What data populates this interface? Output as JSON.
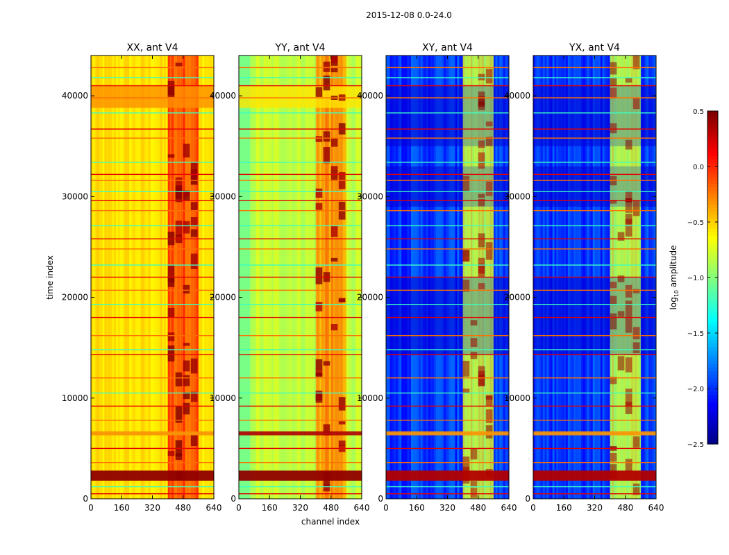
{
  "chart_data": {
    "type": "heatmap",
    "suptitle": "2015-12-08 0.0-24.0",
    "xlabel": "channel index",
    "ylabel": "time index",
    "xlim": [
      0,
      640
    ],
    "ylim": [
      0,
      44000
    ],
    "xticks": [
      0,
      160,
      320,
      480,
      640
    ],
    "yticks": [
      0,
      10000,
      20000,
      30000,
      40000
    ],
    "panels": [
      {
        "title": "XX, ant V4",
        "base_level": -0.55
      },
      {
        "title": "YY, ant V4",
        "base_level": -0.8
      },
      {
        "title": "XY, ant V4",
        "base_level": -1.95
      },
      {
        "title": "YX, ant V4",
        "base_level": -1.95
      }
    ],
    "colorbar": {
      "label": "log10 amplitude",
      "label_main": "log",
      "label_sub": "10",
      "label_rest": " amplitude",
      "range": [
        -2.5,
        0.5
      ],
      "ticks": [
        "0.5",
        "0.0",
        "−0.5",
        "−1.0",
        "−1.5",
        "−2.0",
        "−2.5"
      ],
      "colormap": "jet"
    },
    "features": {
      "bright_channel_range": [
        400,
        560
      ],
      "bright_band_time_range": [
        1800,
        2800
      ],
      "bright_band_time_range_2": [
        6300,
        6700
      ],
      "flagged_rows": [
        500,
        1200,
        3600,
        5000,
        6500,
        7800,
        9200,
        10500,
        12000,
        14300,
        14800,
        16200,
        18000,
        19300,
        20700,
        22000,
        23200,
        24800,
        25800,
        27100,
        28600,
        29600,
        30500,
        31600,
        32200,
        33400,
        35800,
        36700,
        38300,
        39800,
        41000,
        41800,
        42800
      ]
    }
  }
}
